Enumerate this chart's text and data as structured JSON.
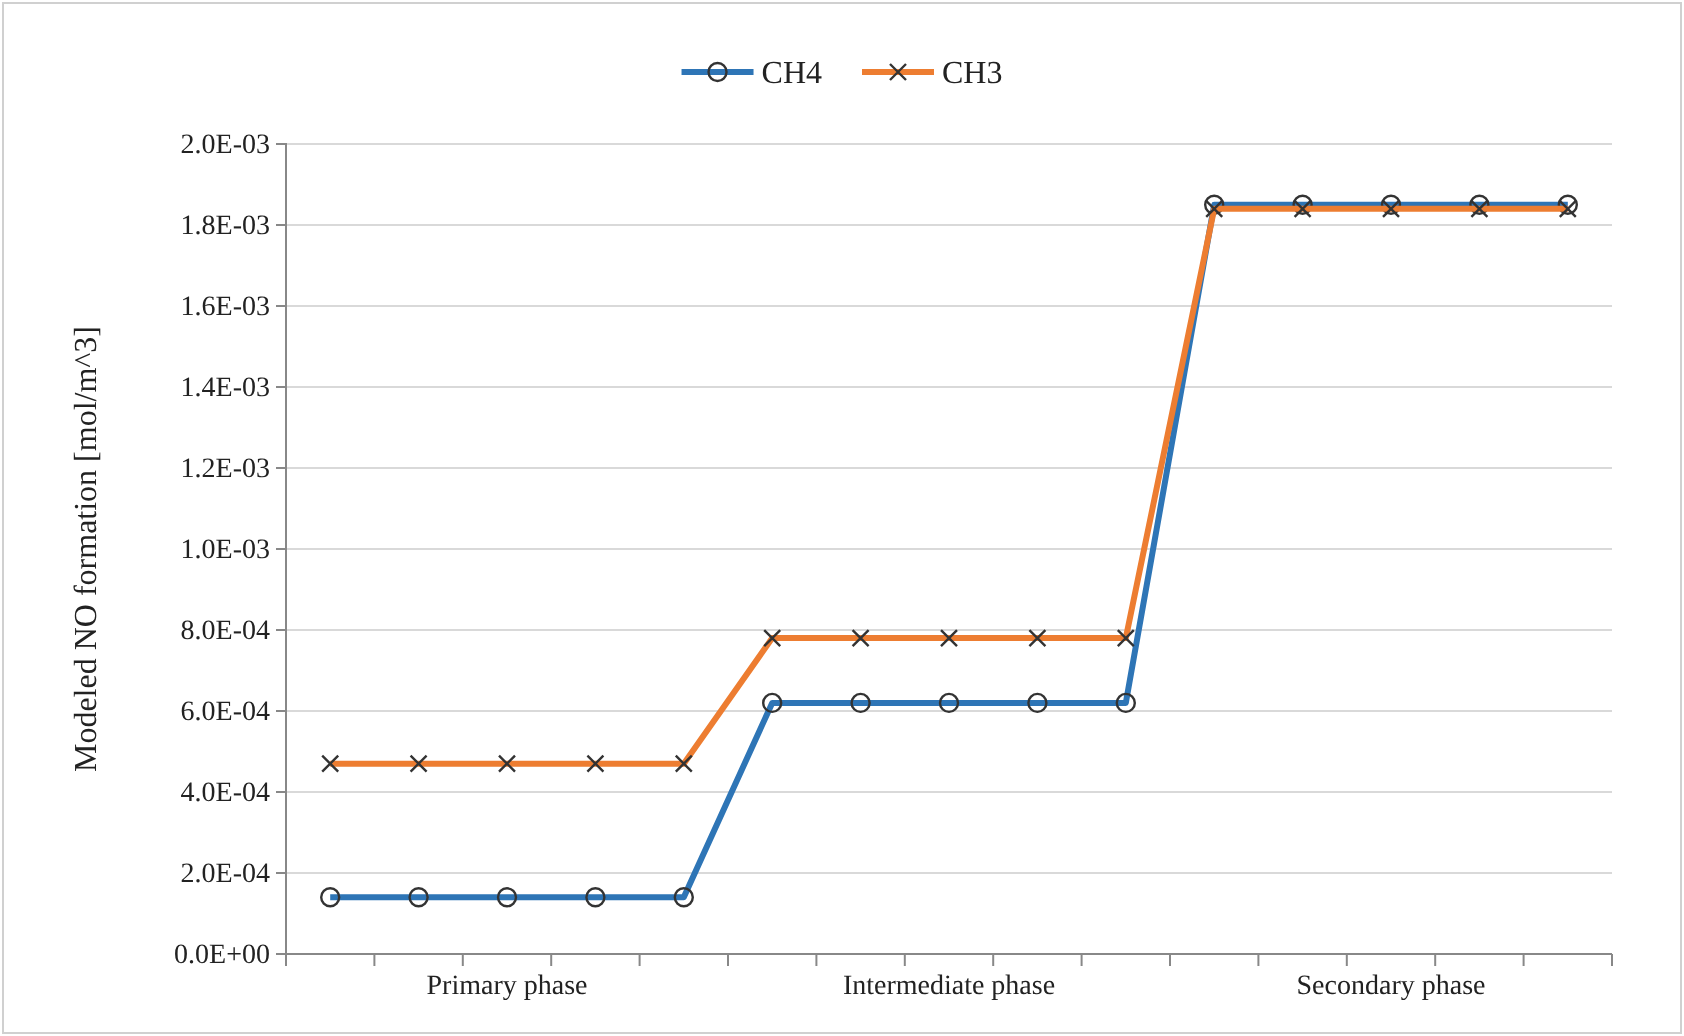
{
  "chart_data": {
    "type": "line",
    "ylabel": "Modeled NO formation [mol/m^3]",
    "categories": [
      null,
      null,
      "Primary phase",
      null,
      null,
      null,
      null,
      "Intermediate phase",
      null,
      null,
      null,
      null,
      "Secondary phase",
      null,
      null
    ],
    "series": [
      {
        "name": "CH4",
        "color": "#2e75b6",
        "marker": "circle",
        "values": [
          0.00014,
          0.00014,
          0.00014,
          0.00014,
          0.00014,
          0.00062,
          0.00062,
          0.00062,
          0.00062,
          0.00062,
          0.00185,
          0.00185,
          0.00185,
          0.00185,
          0.00185
        ]
      },
      {
        "name": "CH3",
        "color": "#ed7d31",
        "marker": "cross",
        "values": [
          0.00047,
          0.00047,
          0.00047,
          0.00047,
          0.00047,
          0.00078,
          0.00078,
          0.00078,
          0.00078,
          0.00078,
          0.00184,
          0.00184,
          0.00184,
          0.00184,
          0.00184
        ]
      }
    ],
    "ylim": [
      0,
      0.002
    ],
    "yticks": [
      {
        "value": 0,
        "label": "0.0E+00"
      },
      {
        "value": 0.0002,
        "label": "2.0E-04"
      },
      {
        "value": 0.0004,
        "label": "4.0E-04"
      },
      {
        "value": 0.0006,
        "label": "6.0E-04"
      },
      {
        "value": 0.0008,
        "label": "8.0E-04"
      },
      {
        "value": 0.001,
        "label": "1.0E-03"
      },
      {
        "value": 0.0012,
        "label": "1.2E-03"
      },
      {
        "value": 0.0014,
        "label": "1.4E-03"
      },
      {
        "value": 0.0016,
        "label": "1.6E-03"
      },
      {
        "value": 0.0018,
        "label": "1.8E-03"
      },
      {
        "value": 0.002,
        "label": "2.0E-03"
      }
    ],
    "grid": "y",
    "legend": "top",
    "line_style": "solid"
  }
}
